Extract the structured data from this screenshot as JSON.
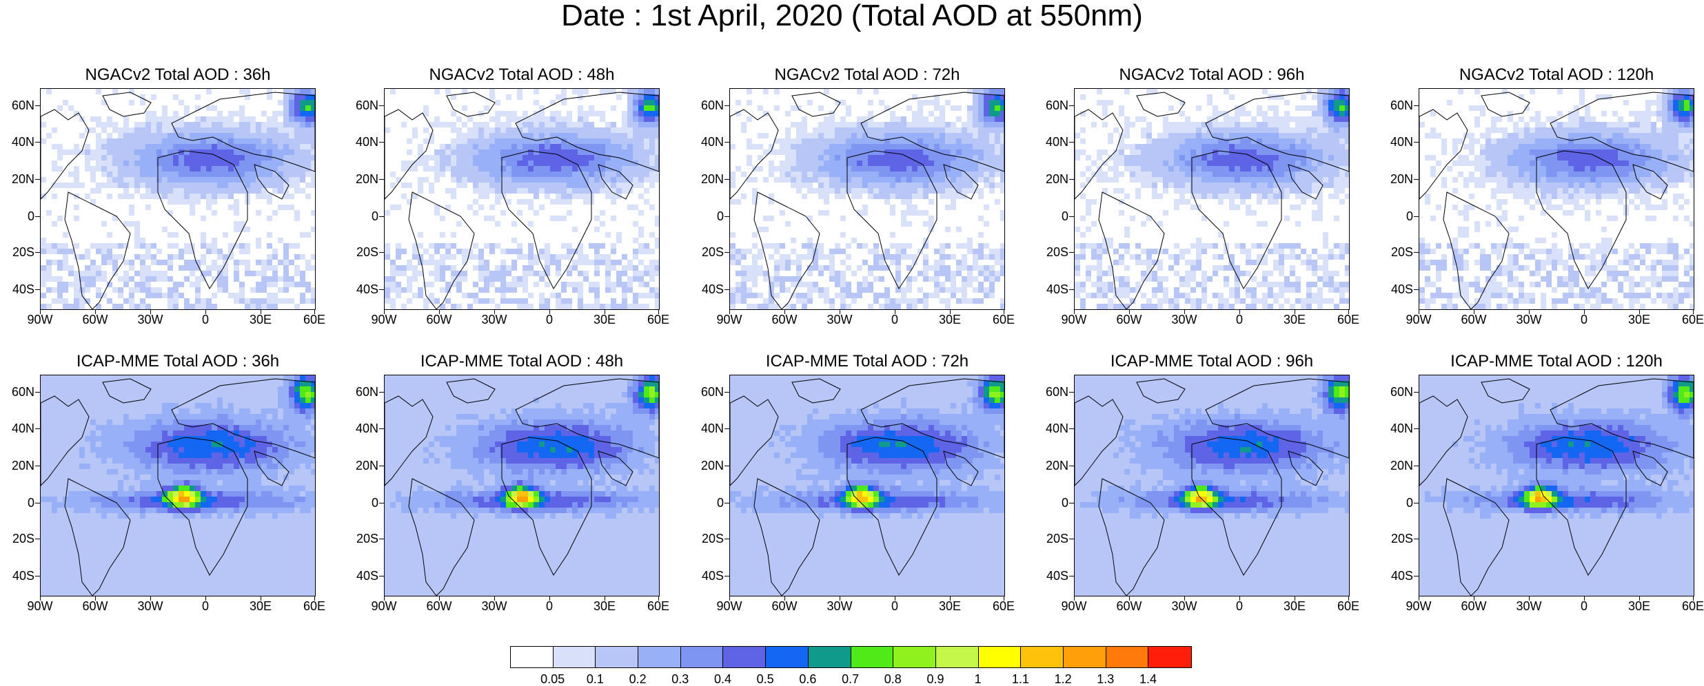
{
  "title": "Date : 1st April, 2020 (Total AOD at 550nm)",
  "lat_labels": [
    "60N",
    "40N",
    "20N",
    "0",
    "20S",
    "40S"
  ],
  "lon_labels": [
    "90W",
    "60W",
    "30W",
    "0",
    "30E",
    "60E"
  ],
  "panels": [
    {
      "title": "NGACv2 Total AOD : 36h",
      "model": "NGACv2",
      "lead": "36h"
    },
    {
      "title": "NGACv2 Total AOD : 48h",
      "model": "NGACv2",
      "lead": "48h"
    },
    {
      "title": "NGACv2 Total AOD : 72h",
      "model": "NGACv2",
      "lead": "72h"
    },
    {
      "title": "NGACv2 Total AOD : 96h",
      "model": "NGACv2",
      "lead": "96h"
    },
    {
      "title": "NGACv2 Total AOD : 120h",
      "model": "NGACv2",
      "lead": "120h"
    },
    {
      "title": "ICAP-MME Total AOD : 36h",
      "model": "ICAP-MME",
      "lead": "36h"
    },
    {
      "title": "ICAP-MME Total AOD : 48h",
      "model": "ICAP-MME",
      "lead": "48h"
    },
    {
      "title": "ICAP-MME Total AOD : 72h",
      "model": "ICAP-MME",
      "lead": "72h"
    },
    {
      "title": "ICAP-MME Total AOD : 96h",
      "model": "ICAP-MME",
      "lead": "96h"
    },
    {
      "title": "ICAP-MME Total AOD : 120h",
      "model": "ICAP-MME",
      "lead": "120h"
    }
  ],
  "colorbar": {
    "labels": [
      "0.05",
      "0.1",
      "0.2",
      "0.3",
      "0.4",
      "0.5",
      "0.6",
      "0.7",
      "0.8",
      "0.9",
      "1",
      "1.1",
      "1.2",
      "1.3",
      "1.4"
    ],
    "colors": [
      "#ffffff",
      "#d8e0fa",
      "#b7c6f7",
      "#97b0f7",
      "#7f95f2",
      "#5f64e6",
      "#1467f2",
      "#0f9a8c",
      "#50ea18",
      "#8ff11e",
      "#c4f74a",
      "#ffff00",
      "#ffc20a",
      "#ffa00a",
      "#ff7a0a",
      "#ff1e0a"
    ]
  }
}
